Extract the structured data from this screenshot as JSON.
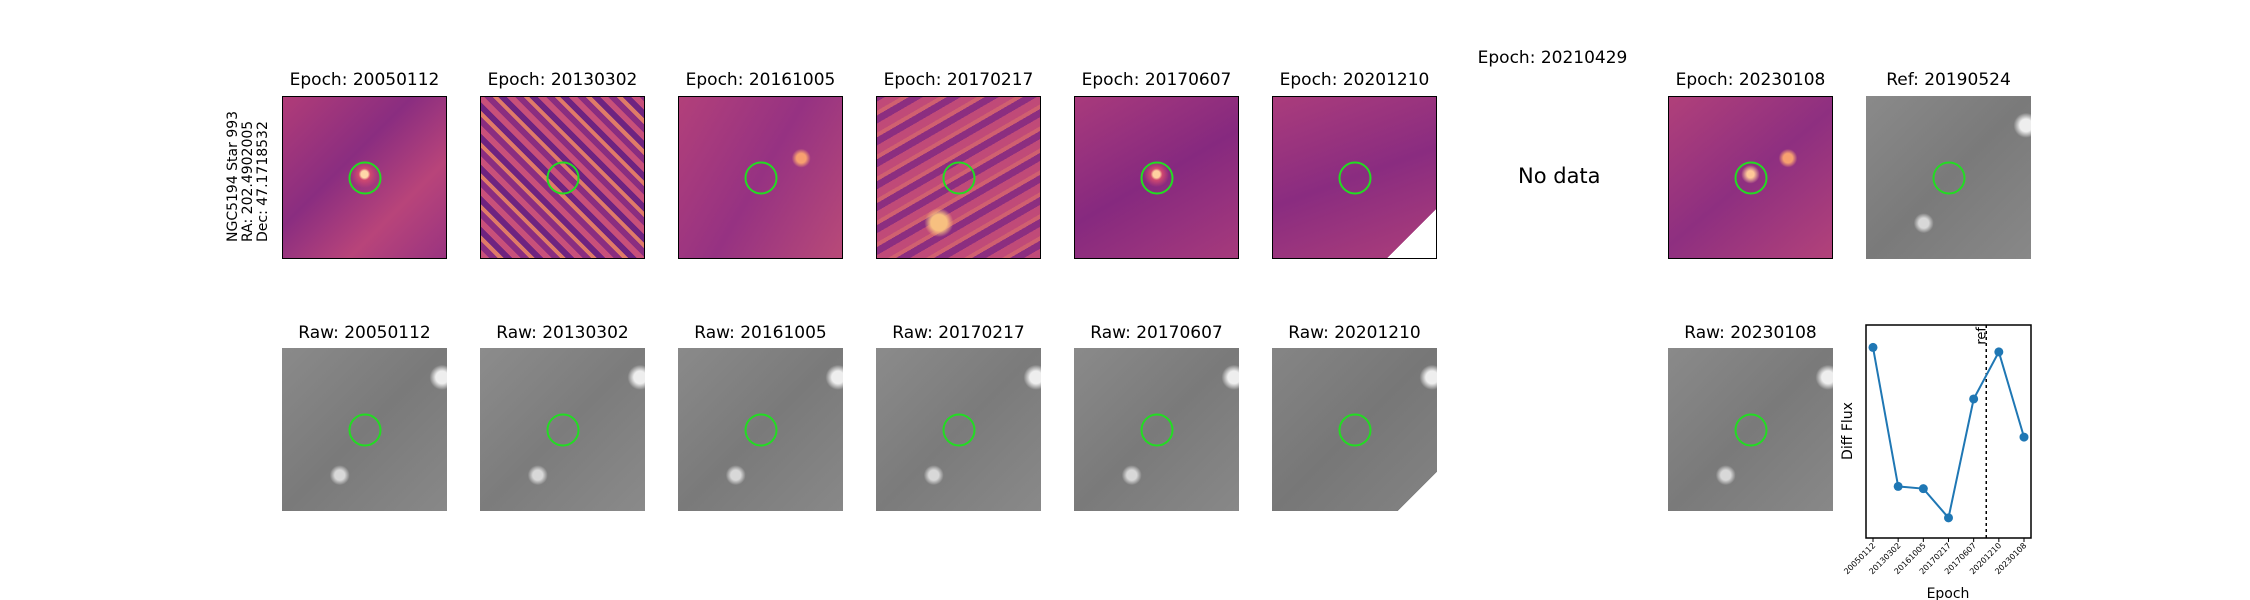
{
  "star_label": {
    "line1": "NGC5194 Star 993",
    "line2": "RA: 202.4902005",
    "line3": "Dec: 47.1718532"
  },
  "diff_titles": [
    "Epoch: 20050112",
    "Epoch: 20130302",
    "Epoch: 20161005",
    "Epoch: 20170217",
    "Epoch: 20170607",
    "Epoch: 20201210",
    "Epoch: 20210429",
    "Epoch: 20230108",
    "Ref: 20190524"
  ],
  "nodata_text": "No data",
  "raw_titles": [
    "Raw: 20050112",
    "Raw: 20130302",
    "Raw: 20161005",
    "Raw: 20170217",
    "Raw: 20170607",
    "Raw: 20201210",
    "Raw: 20230108"
  ],
  "chart_data": {
    "type": "line",
    "xlabel": "Epoch",
    "ylabel": "Diff Flux",
    "categories": [
      "20050112",
      "20130302",
      "20161005",
      "20170217",
      "20170607",
      "20201210",
      "20230108"
    ],
    "values": [
      0.95,
      0.33,
      0.32,
      0.19,
      0.72,
      0.93,
      0.55
    ],
    "ref_marker": {
      "label": "ref",
      "position": 4.5
    },
    "ylim": [
      0.1,
      1.05
    ],
    "colors": {
      "line": "#1f77b4",
      "marker": "#1f77b4",
      "ring": "#22dd22"
    }
  }
}
